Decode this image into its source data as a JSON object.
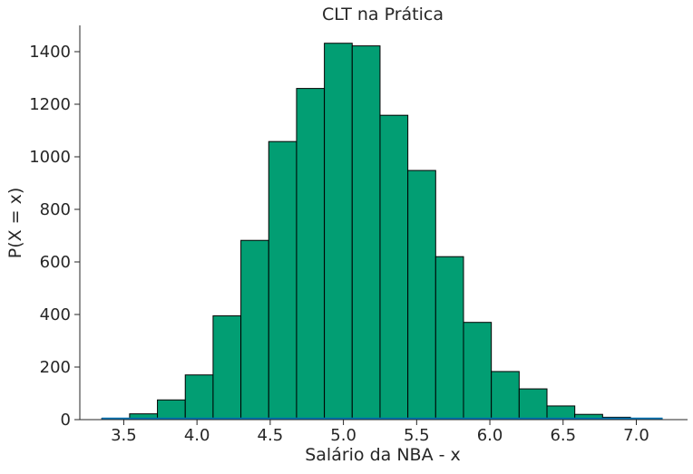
{
  "chart_data": {
    "type": "bar",
    "title": "CLT na Prática",
    "xlabel": "Salário da NBA - x",
    "ylabel": "P(X = x)",
    "xlim": [
      3.2,
      7.35
    ],
    "ylim": [
      0,
      1500
    ],
    "x_ticks": [
      3.5,
      4.0,
      4.5,
      5.0,
      5.5,
      6.0,
      6.5,
      7.0
    ],
    "x_tick_labels": [
      "3.5",
      "4.0",
      "4.5",
      "5.0",
      "5.5",
      "6.0",
      "6.5",
      "7.0"
    ],
    "y_ticks": [
      0,
      200,
      400,
      600,
      800,
      1000,
      1200,
      1400
    ],
    "y_tick_labels": [
      "0",
      "200",
      "400",
      "600",
      "800",
      "1000",
      "1200",
      "1400"
    ],
    "bins": [
      {
        "start": 3.35,
        "end": 3.54,
        "value": 5
      },
      {
        "start": 3.54,
        "end": 3.73,
        "value": 22
      },
      {
        "start": 3.73,
        "end": 3.92,
        "value": 75
      },
      {
        "start": 3.92,
        "end": 4.11,
        "value": 170
      },
      {
        "start": 4.11,
        "end": 4.3,
        "value": 395
      },
      {
        "start": 4.3,
        "end": 4.49,
        "value": 682
      },
      {
        "start": 4.49,
        "end": 4.68,
        "value": 1058
      },
      {
        "start": 4.68,
        "end": 4.87,
        "value": 1260
      },
      {
        "start": 4.87,
        "end": 5.06,
        "value": 1432
      },
      {
        "start": 5.06,
        "end": 5.25,
        "value": 1422
      },
      {
        "start": 5.25,
        "end": 5.44,
        "value": 1158
      },
      {
        "start": 5.44,
        "end": 5.63,
        "value": 948
      },
      {
        "start": 5.63,
        "end": 5.82,
        "value": 620
      },
      {
        "start": 5.82,
        "end": 6.01,
        "value": 370
      },
      {
        "start": 6.01,
        "end": 6.2,
        "value": 183
      },
      {
        "start": 6.2,
        "end": 6.39,
        "value": 117
      },
      {
        "start": 6.39,
        "end": 6.58,
        "value": 52
      },
      {
        "start": 6.58,
        "end": 6.77,
        "value": 20
      },
      {
        "start": 6.77,
        "end": 6.96,
        "value": 9
      },
      {
        "start": 6.96,
        "end": 7.15,
        "value": 4
      }
    ],
    "density_curve_range": [
      3.35,
      7.18
    ],
    "grid": false,
    "colors": {
      "bar_fill": "#029e73",
      "bar_edge": "#000000",
      "curve": "#0173b2",
      "axis": "#262626"
    }
  }
}
